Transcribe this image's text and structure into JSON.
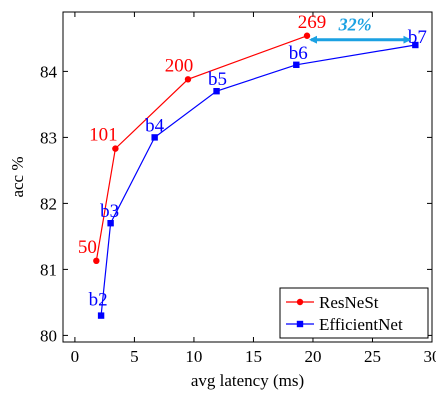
{
  "chart_data": {
    "type": "line",
    "xlabel": "avg latency (ms)",
    "ylabel": "acc %",
    "xlim": [
      -1,
      30
    ],
    "ylim": [
      79.9,
      84.9
    ],
    "xticks": [
      "0",
      "5",
      "10",
      "15",
      "20",
      "25",
      "30"
    ],
    "xtick_values": [
      0,
      5,
      10,
      15,
      20,
      25,
      30
    ],
    "yticks": [
      "80",
      "81",
      "82",
      "83",
      "84"
    ],
    "ytick_values": [
      80,
      81,
      82,
      83,
      84
    ],
    "grid": false,
    "legend_position": "bottom-right",
    "series": [
      {
        "name": "ResNeSt",
        "color": "#ff0000",
        "marker": "circle",
        "points": [
          {
            "label": "50",
            "x": 1.8,
            "y": 81.13
          },
          {
            "label": "101",
            "x": 3.4,
            "y": 82.83
          },
          {
            "label": "200",
            "x": 9.5,
            "y": 83.88
          },
          {
            "label": "269",
            "x": 19.5,
            "y": 84.54
          }
        ]
      },
      {
        "name": "EfficientNet",
        "color": "#0000ff",
        "marker": "square",
        "points": [
          {
            "label": "b2",
            "x": 2.2,
            "y": 80.3
          },
          {
            "label": "b3",
            "x": 3.0,
            "y": 81.7
          },
          {
            "label": "b4",
            "x": 6.7,
            "y": 83.0
          },
          {
            "label": "b5",
            "x": 11.9,
            "y": 83.7
          },
          {
            "label": "b6",
            "x": 18.6,
            "y": 84.1
          },
          {
            "label": "b7",
            "x": 28.6,
            "y": 84.4
          }
        ]
      }
    ],
    "annotation": {
      "text": "32%",
      "color": "#1ba1e2",
      "x_from": 19.5,
      "x_to": 28.6,
      "y": 84.48
    }
  }
}
